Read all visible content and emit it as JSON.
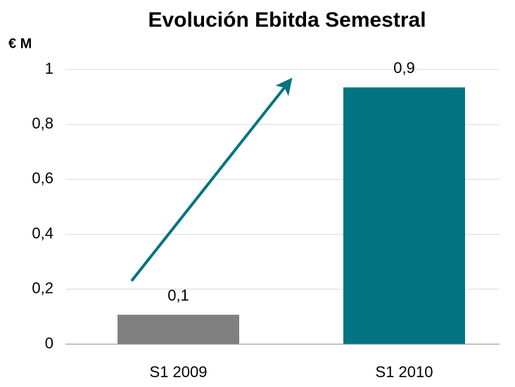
{
  "chart_data": {
    "type": "bar",
    "title": "Evolución Ebitda Semestral",
    "y_label": "€ M",
    "categories": [
      "S1 2009",
      "S1 2010"
    ],
    "values": [
      0.107,
      0.935
    ],
    "value_labels": [
      "0,1",
      "0,9"
    ],
    "colors": [
      "#808080",
      "#007480"
    ],
    "ylim": [
      0,
      1
    ],
    "yticks": [
      0,
      {
        "value": 0.2,
        "label": "0,2"
      },
      {
        "value": 0.4,
        "label": "0,4"
      },
      {
        "value": 0.6,
        "label": "0,6"
      },
      {
        "value": 0.8,
        "label": "0,8"
      },
      1
    ],
    "grid": true
  }
}
